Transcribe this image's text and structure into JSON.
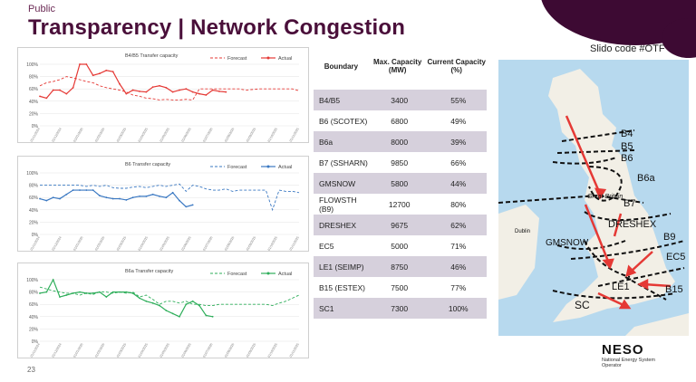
{
  "header": {
    "tag": "Public",
    "title": "Transparency | Network Congestion",
    "slido": "Slido code #OTF",
    "page_number": "23"
  },
  "table": {
    "headers": [
      "Boundary",
      "Max. Capacity (MW)",
      "Current Capacity (%)"
    ],
    "rows": [
      [
        "B4/B5",
        "3400",
        "55%"
      ],
      [
        "B6 (SCOTEX)",
        "6800",
        "49%"
      ],
      [
        "B6a",
        "8000",
        "39%"
      ],
      [
        "B7 (SSHARN)",
        "9850",
        "66%"
      ],
      [
        "GMSNOW",
        "5800",
        "44%"
      ],
      [
        "FLOWSTH (B9)",
        "12700",
        "80%"
      ],
      [
        "DRESHEX",
        "9675",
        "62%"
      ],
      [
        "EC5",
        "5000",
        "71%"
      ],
      [
        "LE1 (SEIMP)",
        "8750",
        "46%"
      ],
      [
        "B15 (ESTEX)",
        "7500",
        "77%"
      ],
      [
        "SC1",
        "7300",
        "100%"
      ]
    ]
  },
  "map": {
    "labels": [
      "B4",
      "B5",
      "B6",
      "B6a",
      "B7",
      "DRESHEX",
      "GMSNOW",
      "B9",
      "EC5",
      "LE1",
      "B15",
      "SC"
    ],
    "place_labels": [
      "Great Britain",
      "Dublin"
    ],
    "arrow_color": "#e53935"
  },
  "logo": {
    "name": "NESO",
    "subtitle": "National Energy System Operator"
  },
  "chart_data": [
    {
      "type": "line",
      "title": "B4/B5 Transfer capacity",
      "legend": [
        "Forecast",
        "Actual"
      ],
      "color": "#e53935",
      "ylim": [
        0,
        100
      ],
      "yticks": [
        "0%",
        "20%",
        "40%",
        "60%",
        "80%",
        "100%"
      ],
      "x": [
        "01/11/2024",
        "01/12/2024",
        "01/01/2025",
        "01/02/2025",
        "01/03/2025",
        "01/04/2025",
        "01/05/2025",
        "01/06/2025",
        "01/07/2025",
        "01/08/2025",
        "01/09/2025",
        "01/10/2025",
        "01/11/2025"
      ],
      "forecast": [
        65,
        70,
        72,
        75,
        80,
        78,
        75,
        72,
        70,
        65,
        62,
        60,
        58,
        55,
        50,
        48,
        45,
        44,
        42,
        43,
        42,
        42,
        43,
        42,
        60,
        60,
        60,
        60,
        60,
        60,
        60,
        58,
        59,
        60,
        60,
        60,
        60,
        60,
        60,
        57
      ],
      "actual": [
        48,
        45,
        58,
        58,
        52,
        62,
        100,
        100,
        82,
        85,
        90,
        88,
        68,
        52,
        58,
        56,
        55,
        63,
        65,
        62,
        55,
        58,
        60,
        55,
        52,
        50,
        58,
        56,
        55
      ],
      "xlim_points": 40
    },
    {
      "type": "line",
      "title": "B6 Transfer capacity",
      "legend": [
        "Forecast",
        "Actual"
      ],
      "color": "#3a78c2",
      "ylim": [
        0,
        100
      ],
      "yticks": [
        "0%",
        "20%",
        "40%",
        "60%",
        "80%",
        "100%"
      ],
      "x": [
        "01/11/2024",
        "01/12/2024",
        "01/01/2025",
        "01/02/2025",
        "01/03/2025",
        "01/04/2025",
        "01/05/2025",
        "01/06/2025",
        "01/07/2025",
        "01/08/2025",
        "01/09/2025",
        "01/10/2025",
        "01/11/2025"
      ],
      "forecast": [
        80,
        80,
        80,
        80,
        80,
        80,
        80,
        78,
        80,
        78,
        80,
        76,
        75,
        75,
        77,
        78,
        76,
        78,
        80,
        78,
        80,
        82,
        70,
        80,
        78,
        74,
        72,
        72,
        74,
        70,
        72,
        72,
        72,
        72,
        72,
        40,
        72,
        70,
        70,
        68
      ],
      "actual": [
        58,
        55,
        60,
        58,
        65,
        72,
        72,
        72,
        72,
        63,
        60,
        58,
        58,
        56,
        60,
        62,
        62,
        65,
        62,
        60,
        68,
        55,
        45,
        48
      ],
      "xlim_points": 40
    },
    {
      "type": "line",
      "title": "B6a Transfer capacity",
      "legend": [
        "Forecast",
        "Actual"
      ],
      "color": "#2eae5a",
      "ylim": [
        0,
        100
      ],
      "yticks": [
        "0%",
        "20%",
        "40%",
        "60%",
        "80%",
        "100%"
      ],
      "x": [
        "01/11/2024",
        "01/12/2024",
        "01/01/2025",
        "01/02/2025",
        "01/03/2025",
        "01/04/2025",
        "01/05/2025",
        "01/06/2025",
        "01/07/2025",
        "01/08/2025",
        "01/09/2025",
        "01/10/2025",
        "01/11/2025"
      ],
      "forecast": [
        88,
        85,
        82,
        80,
        78,
        78,
        75,
        78,
        76,
        80,
        80,
        78,
        80,
        78,
        80,
        72,
        75,
        68,
        60,
        65,
        65,
        62,
        65,
        60,
        60,
        58,
        58,
        60,
        60,
        60,
        60,
        60,
        60,
        60,
        60,
        58,
        62,
        65,
        70,
        75
      ],
      "actual": [
        78,
        80,
        100,
        72,
        75,
        78,
        80,
        78,
        78,
        80,
        72,
        80,
        80,
        80,
        78,
        70,
        65,
        62,
        58,
        50,
        45,
        40,
        60,
        65,
        58,
        42,
        40
      ],
      "xlim_points": 40
    }
  ]
}
